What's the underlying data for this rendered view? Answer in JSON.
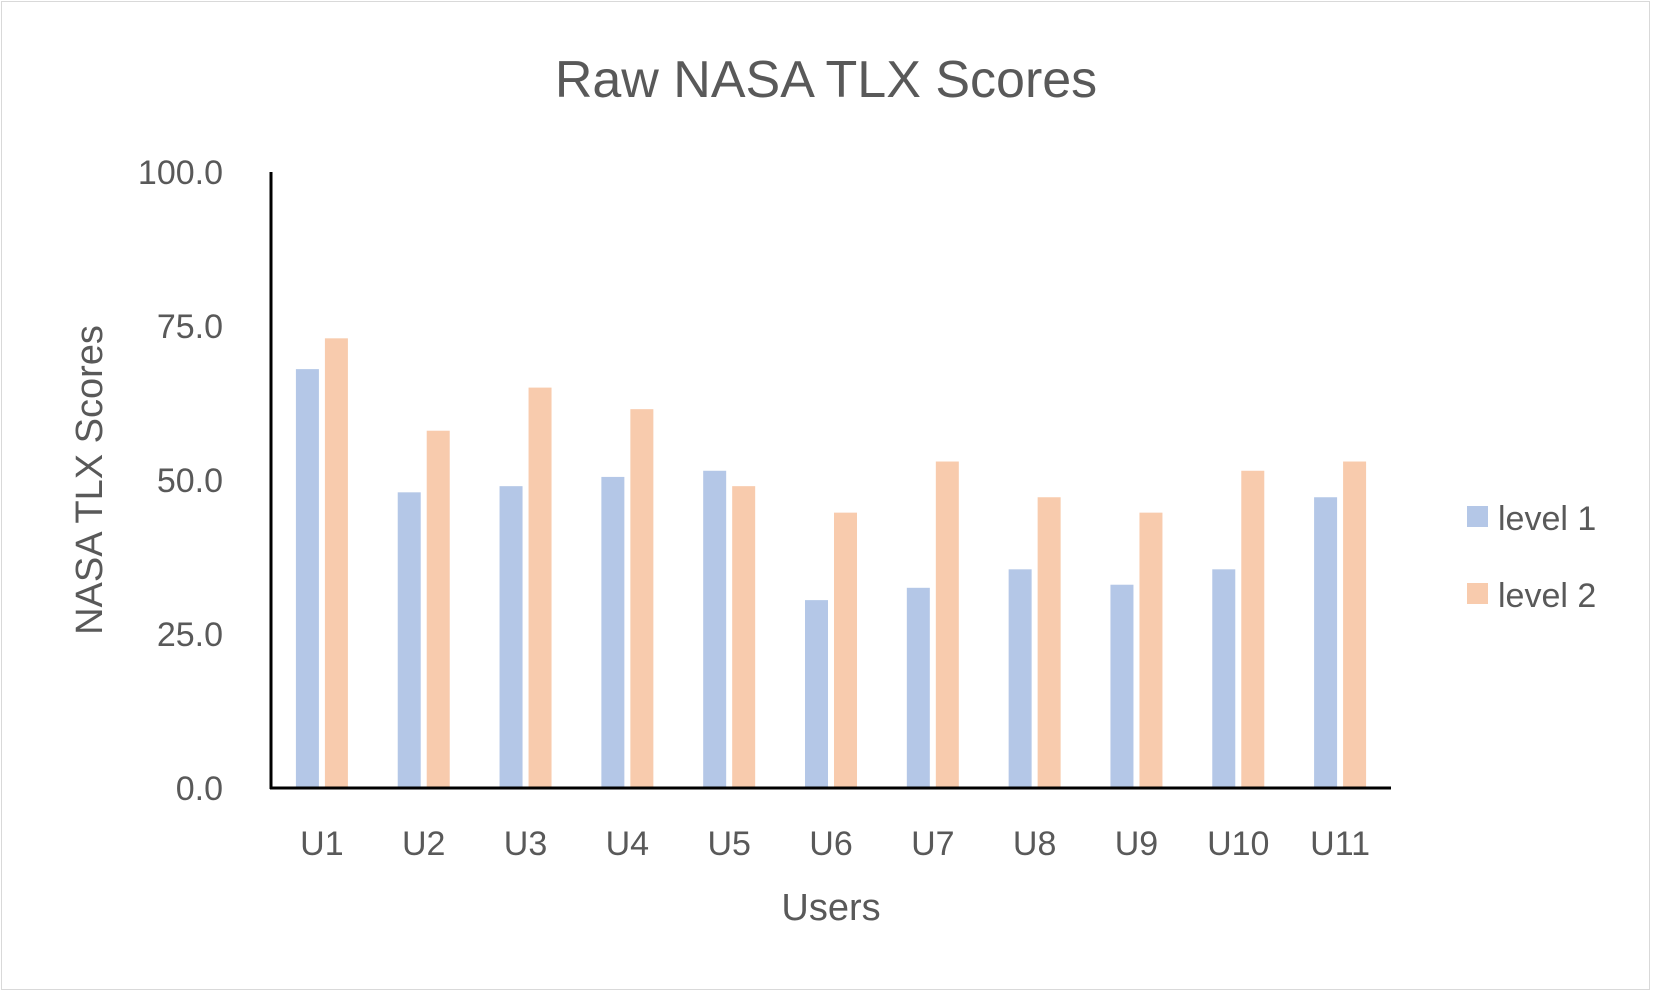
{
  "chart_data": {
    "type": "bar",
    "title": "Raw NASA TLX Scores",
    "xlabel": "Users",
    "ylabel": "NASA TLX Scores",
    "categories": [
      "U1",
      "U2",
      "U3",
      "U4",
      "U5",
      "U6",
      "U7",
      "U8",
      "U9",
      "U10",
      "U11"
    ],
    "series": [
      {
        "name": "level 1",
        "color": "#b4c7e7",
        "values": [
          68.0,
          48.0,
          49.0,
          50.5,
          51.5,
          30.5,
          32.5,
          35.5,
          33.0,
          35.5,
          47.2
        ]
      },
      {
        "name": "level 2",
        "color": "#f8cbad",
        "values": [
          73.0,
          58.0,
          65.0,
          61.5,
          49.0,
          44.7,
          53.0,
          47.2,
          44.7,
          51.5,
          53.0
        ]
      }
    ],
    "yticks": [
      "0.0",
      "25.0",
      "50.0",
      "75.0",
      "100.0"
    ],
    "ylim": [
      0,
      100
    ],
    "grid": false,
    "legend_position": "right"
  }
}
